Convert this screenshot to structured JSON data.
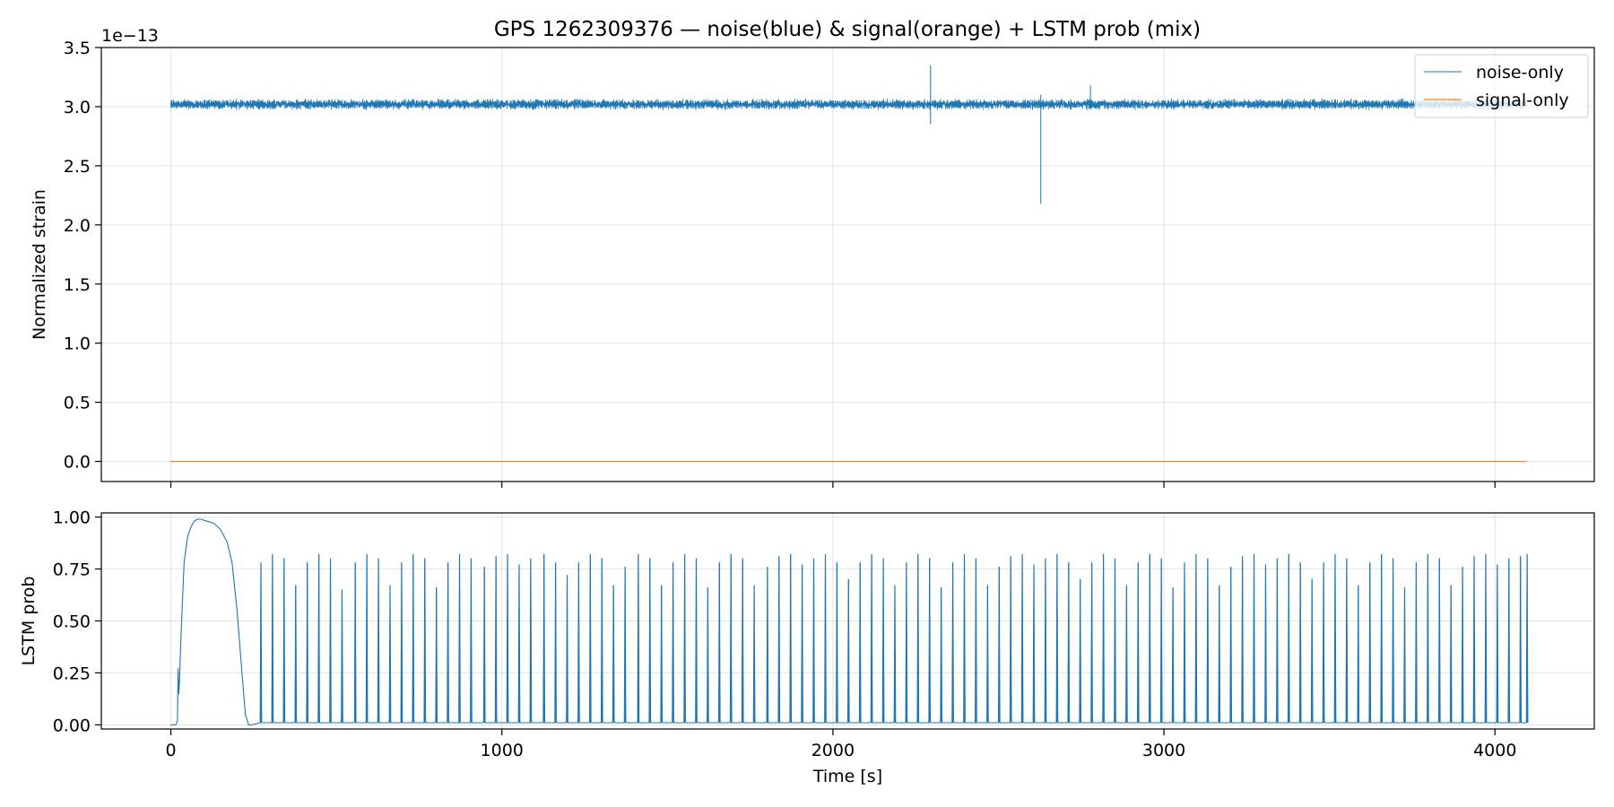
{
  "figure": {
    "title": "GPS 1262309376 — noise(blue) & signal(orange) + LSTM prob (mix)",
    "colors": {
      "noise": "#1f77b4",
      "signal": "#ff7f0e",
      "prob": "#1f77b4",
      "grid": "#b0b0b0"
    }
  },
  "chart_data": [
    {
      "type": "line",
      "ylabel": "Normalized strain",
      "xlabel": "",
      "yoffset_label": "1e−13",
      "xlim": [
        -210,
        4300
      ],
      "ylim": [
        -0.17,
        3.5
      ],
      "xticks": [
        0,
        1000,
        2000,
        3000,
        4000
      ],
      "yticks": [
        "0.0",
        "0.5",
        "1.0",
        "1.5",
        "2.0",
        "2.5",
        "3.0",
        "3.5"
      ],
      "ytick_values": [
        0.0,
        0.5,
        1.0,
        1.5,
        2.0,
        2.5,
        3.0,
        3.5
      ],
      "grid": true,
      "legend_position": "top-right",
      "series": [
        {
          "name": "noise-only",
          "kind": "noise",
          "x_range": [
            0,
            4096
          ],
          "baseline": 3.02,
          "amplitude": 0.05,
          "glitches": [
            {
              "x": 2295,
              "high": 3.35,
              "low": 2.85
            },
            {
              "x": 2628,
              "high": 3.1,
              "low": 2.18
            },
            {
              "x": 2778,
              "high": 3.18,
              "low": 2.98
            }
          ]
        },
        {
          "name": "signal-only",
          "kind": "flat",
          "x": [
            0,
            4096
          ],
          "y": [
            0.0,
            0.0
          ]
        }
      ]
    },
    {
      "type": "line",
      "ylabel": "LSTM prob",
      "xlabel": "Time [s]",
      "xlim": [
        -210,
        4300
      ],
      "ylim": [
        -0.02,
        1.02
      ],
      "xticks": [
        0,
        1000,
        2000,
        3000,
        4000
      ],
      "yticks": [
        "0.00",
        "0.25",
        "0.50",
        "0.75",
        "1.00"
      ],
      "ytick_values": [
        0.0,
        0.25,
        0.5,
        0.75,
        1.0
      ],
      "grid": true,
      "series": [
        {
          "name": "",
          "initial_bump": {
            "x": [
              0,
              15,
              20,
              22,
              24,
              26,
              30,
              40,
              50,
              60,
              70,
              80,
              90,
              100,
              110,
              130,
              150,
              170,
              185,
              200,
              215,
              225,
              235,
              245
            ],
            "y": [
              0,
              0,
              0.02,
              0.27,
              0.15,
              0.2,
              0.4,
              0.78,
              0.9,
              0.95,
              0.98,
              0.99,
              0.99,
              0.985,
              0.98,
              0.97,
              0.94,
              0.88,
              0.78,
              0.55,
              0.25,
              0.05,
              0.0,
              0.0
            ]
          },
          "spikes_x": [
            270,
            305,
            340,
            375,
            410,
            445,
            480,
            515,
            555,
            590,
            625,
            660,
            695,
            730,
            765,
            800,
            835,
            870,
            905,
            945,
            980,
            1015,
            1050,
            1085,
            1125,
            1160,
            1195,
            1230,
            1265,
            1300,
            1335,
            1370,
            1410,
            1445,
            1480,
            1515,
            1550,
            1585,
            1620,
            1655,
            1690,
            1725,
            1760,
            1800,
            1835,
            1870,
            1905,
            1940,
            1975,
            2010,
            2045,
            2080,
            2115,
            2150,
            2185,
            2220,
            2255,
            2290,
            2325,
            2360,
            2395,
            2430,
            2465,
            2500,
            2535,
            2570,
            2605,
            2640,
            2675,
            2710,
            2745,
            2780,
            2815,
            2850,
            2885,
            2920,
            2955,
            2990,
            3025,
            3060,
            3095,
            3130,
            3165,
            3200,
            3235,
            3270,
            3305,
            3340,
            3375,
            3410,
            3445,
            3480,
            3515,
            3550,
            3585,
            3620,
            3655,
            3690,
            3725,
            3760,
            3795,
            3830,
            3865,
            3900,
            3935,
            3970,
            4005,
            4040,
            4075,
            4095
          ],
          "spikes_y": [
            0.78,
            0.82,
            0.8,
            0.67,
            0.78,
            0.82,
            0.8,
            0.65,
            0.78,
            0.82,
            0.8,
            0.67,
            0.78,
            0.82,
            0.8,
            0.66,
            0.78,
            0.82,
            0.8,
            0.76,
            0.81,
            0.82,
            0.77,
            0.8,
            0.82,
            0.78,
            0.72,
            0.78,
            0.82,
            0.8,
            0.67,
            0.76,
            0.82,
            0.8,
            0.67,
            0.78,
            0.82,
            0.8,
            0.66,
            0.78,
            0.82,
            0.8,
            0.67,
            0.76,
            0.81,
            0.82,
            0.77,
            0.8,
            0.82,
            0.78,
            0.7,
            0.78,
            0.82,
            0.8,
            0.67,
            0.78,
            0.82,
            0.8,
            0.66,
            0.78,
            0.82,
            0.8,
            0.67,
            0.76,
            0.81,
            0.82,
            0.77,
            0.8,
            0.82,
            0.78,
            0.7,
            0.78,
            0.82,
            0.8,
            0.67,
            0.78,
            0.82,
            0.8,
            0.66,
            0.78,
            0.82,
            0.8,
            0.67,
            0.76,
            0.81,
            0.82,
            0.77,
            0.8,
            0.82,
            0.78,
            0.7,
            0.78,
            0.82,
            0.8,
            0.67,
            0.78,
            0.82,
            0.8,
            0.66,
            0.78,
            0.82,
            0.8,
            0.67,
            0.76,
            0.81,
            0.82,
            0.77,
            0.8,
            0.81,
            0.82
          ]
        }
      ]
    }
  ]
}
